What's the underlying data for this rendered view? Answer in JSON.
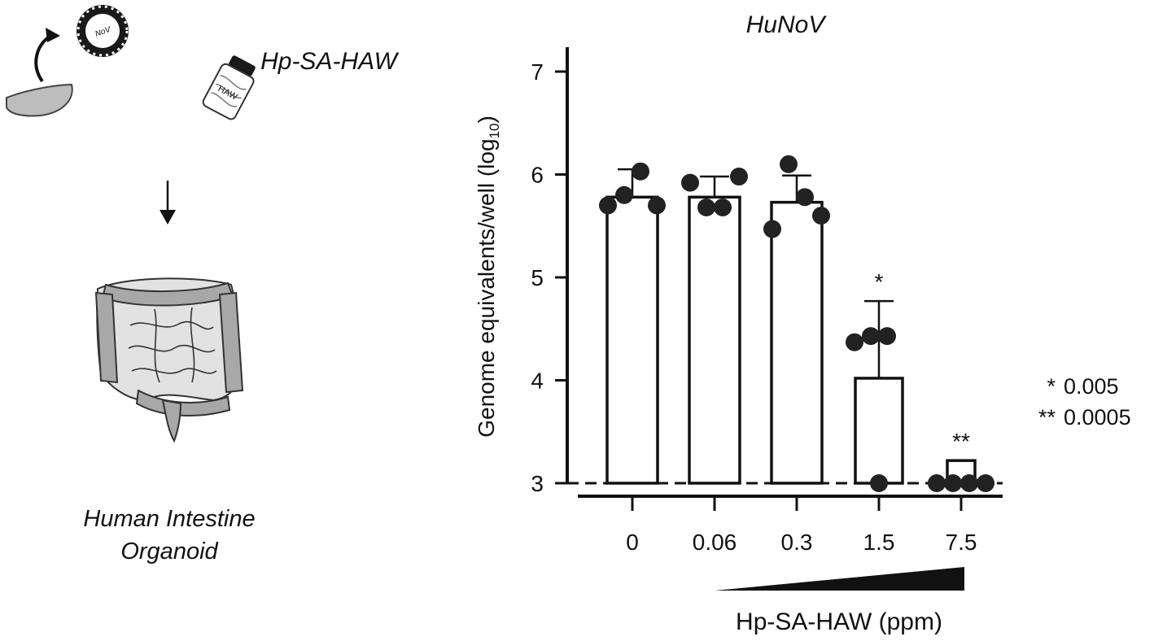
{
  "schematic": {
    "reagent_label": "Hp-SA-HAW",
    "bottle_label": "HAW",
    "virus_label": "NoV",
    "organoid_label_line1": "Human Intestine",
    "organoid_label_line2": "Organoid"
  },
  "significance_key": [
    {
      "stars": "*",
      "value": "0.005"
    },
    {
      "stars": "**",
      "value": "0.0005"
    }
  ],
  "chart_data": {
    "type": "bar",
    "title": "HuNoV",
    "ylabel": "Genome equivalents/well (log",
    "ylabel_subscript": "10",
    "ylabel_suffix": ")",
    "xlabel": "Hp-SA-HAW (ppm)",
    "categories": [
      "0",
      "0.06",
      "0.3",
      "1.5",
      "7.5"
    ],
    "yticks": [
      "3",
      "4",
      "5",
      "6",
      "7"
    ],
    "ylim": [
      3,
      7.2
    ],
    "baseline": 3,
    "limit_of_detection": 3,
    "values": [
      5.78,
      5.78,
      5.73,
      4.02,
      3.22
    ],
    "error_upper": [
      6.05,
      5.98,
      5.99,
      4.77,
      3.22
    ],
    "points": [
      [
        5.7,
        5.8,
        6.03,
        5.7
      ],
      [
        5.92,
        5.68,
        5.68,
        5.98
      ],
      [
        5.47,
        6.1,
        5.78,
        5.6
      ],
      [
        4.37,
        4.43,
        4.43,
        3.0
      ],
      [
        3.0,
        3.0,
        3.0,
        3.0
      ]
    ],
    "significance": [
      "",
      "",
      "",
      "*",
      "**"
    ],
    "gradient_wedge": true,
    "colors": {
      "bar_fill": "#ffffff",
      "stroke": "#111111",
      "points": "#222222"
    }
  }
}
